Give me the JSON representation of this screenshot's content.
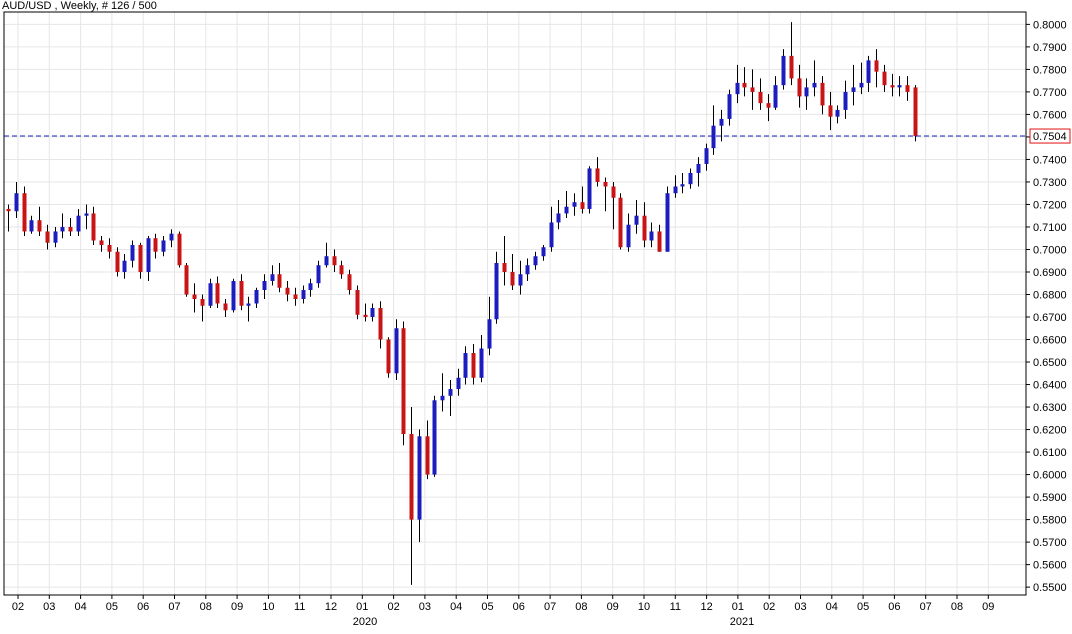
{
  "chart_data": {
    "type": "candlestick",
    "title": "AUD/USD , Weekly, # 126 / 500",
    "current_price": "0.7504",
    "y_ticks": [
      "0.8000",
      "0.7900",
      "0.7800",
      "0.7700",
      "0.7600",
      "0.7500",
      "0.7400",
      "0.7300",
      "0.7200",
      "0.7100",
      "0.7000",
      "0.6900",
      "0.6800",
      "0.6700",
      "0.6600",
      "0.6500",
      "0.6400",
      "0.6300",
      "0.6200",
      "0.6100",
      "0.6000",
      "0.5900",
      "0.5800",
      "0.5700",
      "0.5600",
      "0.5500"
    ],
    "x_ticks": [
      "02",
      "03",
      "04",
      "05",
      "06",
      "07",
      "08",
      "09",
      "10",
      "11",
      "12",
      "01",
      "02",
      "03",
      "04",
      "05",
      "06",
      "07",
      "08",
      "09",
      "10",
      "11",
      "12",
      "01",
      "02",
      "03",
      "04",
      "05",
      "06",
      "07",
      "08",
      "09"
    ],
    "year_labels": [
      "2020",
      "2021"
    ],
    "ylim": [
      0.5465,
      0.8055
    ],
    "grid": true,
    "colors": {
      "up": "#1c1cbf",
      "down": "#c81414",
      "wick": "#000000",
      "price_line": "#2020c0",
      "price_box": "#e01010",
      "grid": "#e6e6e6"
    },
    "candles": [
      [
        0.718,
        0.72,
        0.708,
        0.717
      ],
      [
        0.717,
        0.73,
        0.714,
        0.725
      ],
      [
        0.725,
        0.728,
        0.706,
        0.708
      ],
      [
        0.708,
        0.715,
        0.707,
        0.713
      ],
      [
        0.713,
        0.719,
        0.706,
        0.708
      ],
      [
        0.708,
        0.711,
        0.7,
        0.703
      ],
      [
        0.703,
        0.71,
        0.701,
        0.708
      ],
      [
        0.708,
        0.716,
        0.705,
        0.71
      ],
      [
        0.71,
        0.714,
        0.706,
        0.708
      ],
      [
        0.708,
        0.718,
        0.706,
        0.715
      ],
      [
        0.715,
        0.72,
        0.709,
        0.716
      ],
      [
        0.716,
        0.719,
        0.702,
        0.704
      ],
      [
        0.704,
        0.706,
        0.699,
        0.702
      ],
      [
        0.702,
        0.705,
        0.696,
        0.699
      ],
      [
        0.699,
        0.701,
        0.688,
        0.69
      ],
      [
        0.69,
        0.698,
        0.687,
        0.695
      ],
      [
        0.695,
        0.704,
        0.692,
        0.702
      ],
      [
        0.702,
        0.703,
        0.687,
        0.69
      ],
      [
        0.69,
        0.706,
        0.686,
        0.705
      ],
      [
        0.705,
        0.707,
        0.696,
        0.699
      ],
      [
        0.699,
        0.706,
        0.697,
        0.704
      ],
      [
        0.704,
        0.709,
        0.701,
        0.707
      ],
      [
        0.707,
        0.708,
        0.692,
        0.693
      ],
      [
        0.693,
        0.694,
        0.679,
        0.68
      ],
      [
        0.68,
        0.685,
        0.672,
        0.678
      ],
      [
        0.678,
        0.68,
        0.668,
        0.675
      ],
      [
        0.675,
        0.687,
        0.674,
        0.685
      ],
      [
        0.685,
        0.688,
        0.674,
        0.676
      ],
      [
        0.676,
        0.678,
        0.67,
        0.673
      ],
      [
        0.673,
        0.687,
        0.672,
        0.686
      ],
      [
        0.686,
        0.689,
        0.673,
        0.675
      ],
      [
        0.675,
        0.679,
        0.668,
        0.676
      ],
      [
        0.676,
        0.683,
        0.674,
        0.682
      ],
      [
        0.682,
        0.689,
        0.678,
        0.686
      ],
      [
        0.686,
        0.693,
        0.684,
        0.689
      ],
      [
        0.689,
        0.694,
        0.681,
        0.683
      ],
      [
        0.683,
        0.686,
        0.677,
        0.68
      ],
      [
        0.68,
        0.683,
        0.675,
        0.678
      ],
      [
        0.678,
        0.684,
        0.676,
        0.682
      ],
      [
        0.682,
        0.687,
        0.679,
        0.685
      ],
      [
        0.685,
        0.695,
        0.683,
        0.693
      ],
      [
        0.693,
        0.703,
        0.692,
        0.697
      ],
      [
        0.697,
        0.7,
        0.69,
        0.693
      ],
      [
        0.693,
        0.695,
        0.687,
        0.689
      ],
      [
        0.689,
        0.691,
        0.68,
        0.682
      ],
      [
        0.682,
        0.684,
        0.669,
        0.671
      ],
      [
        0.671,
        0.676,
        0.668,
        0.67
      ],
      [
        0.67,
        0.676,
        0.668,
        0.674
      ],
      [
        0.674,
        0.677,
        0.656,
        0.66
      ],
      [
        0.66,
        0.661,
        0.643,
        0.645
      ],
      [
        0.645,
        0.669,
        0.642,
        0.665
      ],
      [
        0.665,
        0.668,
        0.613,
        0.618
      ],
      [
        0.618,
        0.63,
        0.551,
        0.58
      ],
      [
        0.58,
        0.62,
        0.57,
        0.617
      ],
      [
        0.617,
        0.624,
        0.598,
        0.6
      ],
      [
        0.6,
        0.635,
        0.599,
        0.633
      ],
      [
        0.633,
        0.645,
        0.628,
        0.635
      ],
      [
        0.635,
        0.642,
        0.626,
        0.638
      ],
      [
        0.638,
        0.647,
        0.635,
        0.643
      ],
      [
        0.643,
        0.657,
        0.64,
        0.654
      ],
      [
        0.654,
        0.658,
        0.64,
        0.643
      ],
      [
        0.643,
        0.662,
        0.641,
        0.656
      ],
      [
        0.656,
        0.679,
        0.653,
        0.669
      ],
      [
        0.669,
        0.699,
        0.667,
        0.694
      ],
      [
        0.694,
        0.706,
        0.684,
        0.69
      ],
      [
        0.69,
        0.698,
        0.682,
        0.684
      ],
      [
        0.684,
        0.695,
        0.68,
        0.689
      ],
      [
        0.689,
        0.696,
        0.686,
        0.693
      ],
      [
        0.693,
        0.699,
        0.691,
        0.697
      ],
      [
        0.697,
        0.702,
        0.695,
        0.701
      ],
      [
        0.701,
        0.719,
        0.699,
        0.712
      ],
      [
        0.712,
        0.722,
        0.709,
        0.716
      ],
      [
        0.716,
        0.726,
        0.714,
        0.719
      ],
      [
        0.719,
        0.725,
        0.715,
        0.721
      ],
      [
        0.721,
        0.728,
        0.716,
        0.718
      ],
      [
        0.718,
        0.737,
        0.716,
        0.736
      ],
      [
        0.736,
        0.741,
        0.728,
        0.73
      ],
      [
        0.73,
        0.732,
        0.717,
        0.728
      ],
      [
        0.728,
        0.73,
        0.709,
        0.723
      ],
      [
        0.723,
        0.725,
        0.7,
        0.701
      ],
      [
        0.701,
        0.716,
        0.699,
        0.711
      ],
      [
        0.711,
        0.722,
        0.707,
        0.715
      ],
      [
        0.715,
        0.721,
        0.701,
        0.704
      ],
      [
        0.704,
        0.712,
        0.701,
        0.708
      ],
      [
        0.708,
        0.711,
        0.699,
        0.699
      ],
      [
        0.699,
        0.728,
        0.699,
        0.725
      ],
      [
        0.725,
        0.733,
        0.723,
        0.728
      ],
      [
        0.728,
        0.734,
        0.725,
        0.729
      ],
      [
        0.729,
        0.736,
        0.727,
        0.734
      ],
      [
        0.734,
        0.741,
        0.728,
        0.738
      ],
      [
        0.738,
        0.747,
        0.735,
        0.745
      ],
      [
        0.745,
        0.764,
        0.742,
        0.755
      ],
      [
        0.755,
        0.762,
        0.748,
        0.758
      ],
      [
        0.758,
        0.771,
        0.755,
        0.769
      ],
      [
        0.769,
        0.782,
        0.765,
        0.774
      ],
      [
        0.774,
        0.781,
        0.768,
        0.772
      ],
      [
        0.772,
        0.78,
        0.762,
        0.77
      ],
      [
        0.77,
        0.776,
        0.762,
        0.765
      ],
      [
        0.765,
        0.769,
        0.757,
        0.763
      ],
      [
        0.763,
        0.777,
        0.762,
        0.773
      ],
      [
        0.773,
        0.789,
        0.771,
        0.786
      ],
      [
        0.786,
        0.801,
        0.773,
        0.776
      ],
      [
        0.776,
        0.782,
        0.763,
        0.768
      ],
      [
        0.768,
        0.776,
        0.762,
        0.772
      ],
      [
        0.772,
        0.784,
        0.768,
        0.774
      ],
      [
        0.774,
        0.777,
        0.76,
        0.764
      ],
      [
        0.764,
        0.77,
        0.753,
        0.759
      ],
      [
        0.759,
        0.764,
        0.756,
        0.762
      ],
      [
        0.762,
        0.775,
        0.758,
        0.77
      ],
      [
        0.77,
        0.782,
        0.764,
        0.772
      ],
      [
        0.772,
        0.783,
        0.769,
        0.774
      ],
      [
        0.774,
        0.786,
        0.77,
        0.784
      ],
      [
        0.784,
        0.789,
        0.772,
        0.779
      ],
      [
        0.779,
        0.782,
        0.77,
        0.773
      ],
      [
        0.773,
        0.778,
        0.768,
        0.772
      ],
      [
        0.772,
        0.777,
        0.768,
        0.773
      ],
      [
        0.773,
        0.777,
        0.766,
        0.77
      ],
      [
        0.772,
        0.773,
        0.748,
        0.7504
      ]
    ]
  }
}
